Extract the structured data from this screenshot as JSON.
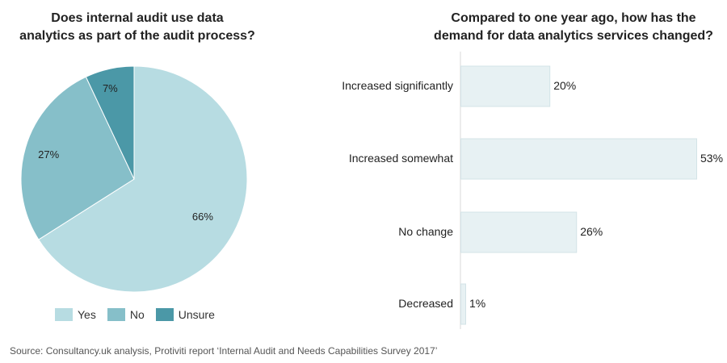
{
  "chart_data": [
    {
      "type": "pie",
      "title": "Does internal audit use data analytics as part of the audit process?",
      "title_lines": [
        "Does internal audit use data",
        "analytics as part of the audit process?"
      ],
      "categories": [
        "Yes",
        "No",
        "Unsure"
      ],
      "values": [
        66,
        27,
        7
      ],
      "value_labels": [
        "66%",
        "27%",
        "7%"
      ],
      "colors": [
        "#b7dce2",
        "#86bfc9",
        "#4b98a7"
      ],
      "legend": "bottom"
    },
    {
      "type": "bar",
      "orientation": "horizontal",
      "title": "Compared to one year ago, how has the demand for data analytics services changed?",
      "title_lines": [
        "Compared to one year ago, how has the",
        "demand for data analytics services changed?"
      ],
      "categories": [
        "Increased significantly",
        "Increased somewhat",
        "No change",
        "Decreased"
      ],
      "values": [
        20,
        53,
        26,
        1
      ],
      "value_labels": [
        "20%",
        "53%",
        "26%",
        "1%"
      ],
      "bar_color": "#e7f1f3",
      "bar_border": "#d3e3e7",
      "xlim": [
        0,
        53
      ]
    }
  ],
  "source": "Source: Consultancy.uk analysis, Protiviti report ‘Internal Audit and Needs Capabilities Survey 2017’"
}
